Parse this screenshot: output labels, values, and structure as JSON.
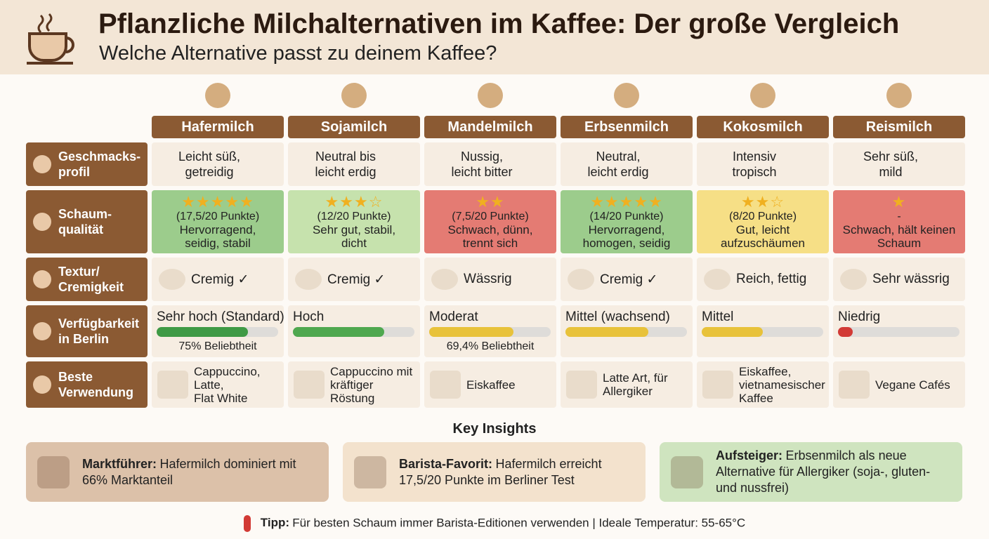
{
  "header": {
    "title": "Pflanzliche Milchalternativen im Kaffee: Der große Vergleich",
    "subtitle": "Welche Alternative passt zu deinem Kaffee?"
  },
  "row_labels": [
    "Geschmacks-\nprofil",
    "Schaum-\nqualität",
    "Textur/\nCremigkeit",
    "Verfügbarkeit\nin Berlin",
    "Beste\nVerwendung"
  ],
  "columns": [
    {
      "name": "Hafermilch",
      "taste": "Leicht süß,\ngetreidig",
      "foam": {
        "stars": "★★★★★",
        "points": "(17,5/20 Punkte)",
        "text": "Hervorragend,\nseidig, stabil",
        "color": "#9ccc8c"
      },
      "texture": "Cremig ✓",
      "availability": {
        "label": "Sehr hoch (Standard)",
        "value": 75,
        "caption": "75% Beliebtheit",
        "color": "#3f9a45"
      },
      "use": "Cappuccino,\nLatte,\nFlat White"
    },
    {
      "name": "Sojamilch",
      "taste": "Neutral bis\nleicht erdig",
      "foam": {
        "stars": "★★★☆",
        "points": "(12/20 Punkte)",
        "text": "Sehr gut, stabil,\ndicht",
        "color": "#c6e2ad"
      },
      "texture": "Cremig ✓",
      "availability": {
        "label": "Hoch",
        "value": 75,
        "color": "#4fa84f"
      },
      "use": "Cappuccino mit\nkräftiger Röstung"
    },
    {
      "name": "Mandelmilch",
      "taste": "Nussig,\nleicht bitter",
      "foam": {
        "stars": "★★",
        "points": "(7,5/20 Punkte)",
        "text": "Schwach, dünn,\ntrennt sich",
        "color": "#e47b73"
      },
      "texture": "Wässrig",
      "availability": {
        "label": "Moderat",
        "value": 69.4,
        "caption": "69,4% Beliebtheit",
        "color": "#e8c23a"
      },
      "use": "Eiskaffee"
    },
    {
      "name": "Erbsenmilch",
      "taste": "Neutral,\nleicht erdig",
      "foam": {
        "stars": "★★★★★",
        "points": "(14/20 Punkte)",
        "text": "Hervorragend,\nhomogen, seidig",
        "color": "#9ccc8c"
      },
      "texture": "Cremig ✓",
      "availability": {
        "label": "Mittel (wachsend)",
        "value": 68,
        "color": "#e8c23a"
      },
      "use": "Latte Art, für\nAllergiker"
    },
    {
      "name": "Kokosmilch",
      "taste": "Intensiv\ntropisch",
      "foam": {
        "stars": "★★☆",
        "points": "(8/20 Punkte)",
        "text": "Gut, leicht\naufzuschäumen",
        "color": "#f6df86"
      },
      "texture": "Reich, fettig",
      "availability": {
        "label": "Mittel",
        "value": 50,
        "color": "#e8c23a"
      },
      "use": "Eiskaffee,\nvietnamesischer\nKaffee"
    },
    {
      "name": "Reismilch",
      "taste": "Sehr süß,\nmild",
      "foam": {
        "stars": "★",
        "points": "-",
        "text": "Schwach, hält keinen\nSchaum",
        "color": "#e47b73"
      },
      "texture": "Sehr wässrig",
      "availability": {
        "label": "Niedrig",
        "value": 12,
        "color": "#d23a35"
      },
      "use": "Vegane Cafés"
    }
  ],
  "insights": {
    "title": "Key Insights",
    "cards": [
      {
        "bold": "Marktführer:",
        "text": "Hafermilch dominiert mit 66% Marktanteil",
        "color": "#dcc1a9"
      },
      {
        "bold": "Barista-Favorit:",
        "text": "Hafermilch erreicht 17,5/20 Punkte im Berliner Test",
        "color": "#f3e2cd"
      },
      {
        "bold": "Aufsteiger:",
        "text": "Erbsenmilch als neue Alternative für Allergiker (soja-, gluten- und nussfrei)",
        "color": "#cfe4bf"
      }
    ]
  },
  "tip": {
    "bold": "Tipp:",
    "text": "Für besten Schaum immer Barista-Editionen verwenden | Ideale Temperatur: 55-65°C"
  }
}
